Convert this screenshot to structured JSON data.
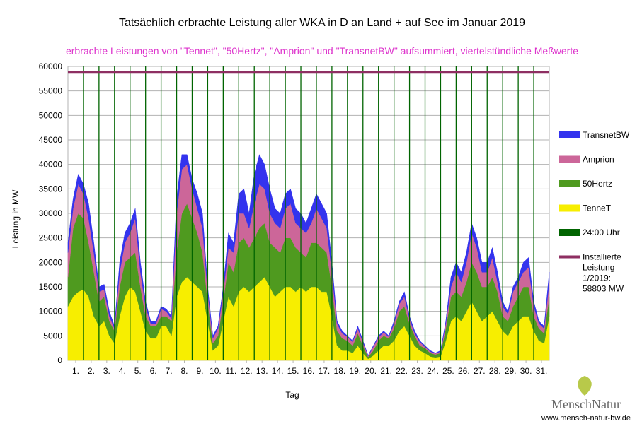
{
  "chart_data": {
    "type": "stacked_area",
    "title": "Tatsächlich erbrachte Leistung aller WKA in D an Land + auf See im Januar 2019",
    "subtitle": "erbrachte Leistungen von \"Tennet\", \"50Hertz\", \"Amprion\" und \"TransnetBW\" aufsummiert, viertelstündliche Meßwerte",
    "y_label": "Leistung in MW",
    "x_label": "Tag",
    "xlim": [
      0,
      744
    ],
    "ylim": [
      0,
      60000
    ],
    "yticks": [
      0,
      5000,
      10000,
      15000,
      20000,
      25000,
      30000,
      35000,
      40000,
      45000,
      50000,
      55000,
      60000
    ],
    "xticks": [
      {
        "value": 12,
        "label": "1."
      },
      {
        "value": 36,
        "label": "2."
      },
      {
        "value": 60,
        "label": "3."
      },
      {
        "value": 84,
        "label": "4."
      },
      {
        "value": 108,
        "label": "5."
      },
      {
        "value": 132,
        "label": "6."
      },
      {
        "value": 156,
        "label": "7."
      },
      {
        "value": 180,
        "label": "8."
      },
      {
        "value": 204,
        "label": "9."
      },
      {
        "value": 228,
        "label": "10."
      },
      {
        "value": 252,
        "label": "11."
      },
      {
        "value": 276,
        "label": "12."
      },
      {
        "value": 300,
        "label": "13."
      },
      {
        "value": 324,
        "label": "14."
      },
      {
        "value": 348,
        "label": "15."
      },
      {
        "value": 372,
        "label": "16."
      },
      {
        "value": 396,
        "label": "17."
      },
      {
        "value": 420,
        "label": "18."
      },
      {
        "value": 444,
        "label": "19."
      },
      {
        "value": 468,
        "label": "20."
      },
      {
        "value": 492,
        "label": "21."
      },
      {
        "value": 516,
        "label": "22."
      },
      {
        "value": 540,
        "label": "23."
      },
      {
        "value": 564,
        "label": "24."
      },
      {
        "value": 588,
        "label": "25."
      },
      {
        "value": 612,
        "label": "26."
      },
      {
        "value": 636,
        "label": "27."
      },
      {
        "value": 660,
        "label": "28."
      },
      {
        "value": 684,
        "label": "29."
      },
      {
        "value": 708,
        "label": "30."
      },
      {
        "value": 732,
        "label": "31."
      }
    ],
    "grid": true,
    "x": [
      0,
      8,
      16,
      24,
      32,
      40,
      48,
      56,
      64,
      72,
      80,
      88,
      96,
      104,
      112,
      120,
      128,
      136,
      144,
      152,
      160,
      168,
      176,
      184,
      192,
      200,
      208,
      216,
      224,
      232,
      240,
      248,
      256,
      264,
      272,
      280,
      288,
      296,
      304,
      312,
      320,
      328,
      336,
      344,
      352,
      360,
      368,
      376,
      384,
      392,
      400,
      408,
      416,
      424,
      432,
      440,
      448,
      456,
      464,
      472,
      480,
      488,
      496,
      504,
      512,
      520,
      528,
      536,
      544,
      552,
      560,
      568,
      576,
      584,
      592,
      600,
      608,
      616,
      624,
      632,
      640,
      648,
      656,
      664,
      672,
      680,
      688,
      696,
      704,
      712,
      720,
      728,
      736,
      744
    ],
    "series": [
      {
        "name": "TenneT",
        "color": "#f7ee00",
        "values": [
          11000,
          13000,
          14000,
          14500,
          13000,
          9000,
          7000,
          8000,
          5000,
          3500,
          9000,
          13000,
          15000,
          14000,
          10000,
          6000,
          4500,
          4500,
          7000,
          7000,
          5000,
          13000,
          16000,
          17000,
          16000,
          15000,
          14000,
          8000,
          2000,
          3000,
          8000,
          13000,
          11000,
          14000,
          15000,
          14000,
          15000,
          16000,
          17000,
          15000,
          13000,
          14000,
          15000,
          15000,
          14000,
          15000,
          14000,
          15000,
          15000,
          14000,
          14000,
          9000,
          3000,
          2000,
          2000,
          1500,
          3000,
          1500,
          300,
          1000,
          2000,
          3000,
          3000,
          4000,
          6000,
          7000,
          5000,
          3000,
          2000,
          1500,
          800,
          600,
          800,
          4000,
          8000,
          9000,
          8000,
          10000,
          12000,
          10000,
          8000,
          9000,
          10000,
          8000,
          6000,
          5000,
          7000,
          8000,
          9000,
          9000,
          6000,
          4000,
          3500,
          9000
        ]
      },
      {
        "name": "50Hertz",
        "color": "#4f9a1f",
        "values": [
          6000,
          14000,
          16000,
          14500,
          11000,
          9000,
          5000,
          5000,
          3000,
          2500,
          6000,
          7000,
          6000,
          8000,
          5000,
          3000,
          2500,
          2500,
          2000,
          2000,
          3000,
          9000,
          14000,
          15000,
          13000,
          11000,
          8000,
          4000,
          1500,
          2000,
          4000,
          7000,
          7000,
          10000,
          10000,
          9000,
          10000,
          11000,
          11000,
          9000,
          10000,
          8000,
          10000,
          10000,
          9000,
          7000,
          7000,
          9000,
          9000,
          9000,
          8000,
          6000,
          3000,
          2500,
          2000,
          1500,
          2500,
          1500,
          400,
          1000,
          2000,
          2000,
          1500,
          2500,
          4000,
          4000,
          2500,
          2000,
          1000,
          1000,
          700,
          600,
          700,
          2500,
          5000,
          5000,
          5000,
          6000,
          8000,
          8000,
          7000,
          6000,
          7000,
          6000,
          3000,
          3000,
          4000,
          5000,
          6000,
          6000,
          3000,
          2500,
          2000,
          4000
        ]
      },
      {
        "name": "Amprion",
        "color": "#cc6699",
        "values": [
          5000,
          4000,
          6000,
          5000,
          5000,
          4000,
          2000,
          1500,
          1000,
          500,
          3000,
          4000,
          5000,
          7000,
          3000,
          2000,
          500,
          500,
          1500,
          1000,
          500,
          8000,
          9000,
          8000,
          6000,
          5000,
          5000,
          2000,
          1000,
          1500,
          2000,
          3000,
          4000,
          6000,
          5000,
          4000,
          7000,
          9000,
          7000,
          6000,
          5000,
          5000,
          6000,
          7000,
          5000,
          5000,
          5000,
          4000,
          7000,
          6000,
          5000,
          3000,
          1500,
          1000,
          800,
          800,
          1000,
          700,
          200,
          800,
          700,
          700,
          300,
          1000,
          1500,
          2000,
          1000,
          500,
          700,
          300,
          300,
          200,
          300,
          1000,
          2000,
          4000,
          3000,
          4000,
          6000,
          5000,
          3000,
          3000,
          4000,
          2000,
          2000,
          1500,
          3000,
          3000,
          3000,
          4000,
          2000,
          1000,
          1000,
          3000
        ]
      },
      {
        "name": "TransnetBW",
        "color": "#3333ee",
        "values": [
          2000,
          2000,
          2000,
          2000,
          3000,
          2000,
          1000,
          1000,
          1000,
          500,
          2000,
          2000,
          2000,
          2000,
          2000,
          1000,
          500,
          500,
          500,
          500,
          500,
          3000,
          3000,
          2000,
          2000,
          3000,
          3000,
          1000,
          500,
          500,
          1000,
          3000,
          2000,
          4000,
          5000,
          3000,
          6000,
          6000,
          5000,
          5000,
          3000,
          3000,
          3000,
          3000,
          3000,
          3000,
          2000,
          3000,
          3000,
          3000,
          3000,
          2000,
          500,
          500,
          200,
          200,
          500,
          300,
          100,
          200,
          300,
          300,
          200,
          500,
          500,
          1000,
          500,
          500,
          300,
          200,
          200,
          100,
          200,
          500,
          2000,
          2000,
          2000,
          2000,
          2000,
          2000,
          2000,
          2000,
          2000,
          2000,
          1000,
          500,
          1000,
          1000,
          2000,
          2000,
          1000,
          500,
          500,
          2000
        ]
      }
    ],
    "day_lines": {
      "name": "24:00 Uhr",
      "color": "#006400",
      "x": [
        24,
        48,
        72,
        96,
        120,
        144,
        168,
        192,
        216,
        240,
        264,
        288,
        312,
        336,
        360,
        384,
        408,
        432,
        456,
        480,
        504,
        528,
        552,
        576,
        600,
        624,
        648,
        672,
        696,
        720
      ]
    },
    "capacity_line": {
      "name": [
        "Installierte",
        "Leistung",
        "1/2019:",
        "58803 MW"
      ],
      "color": "#8e2f62",
      "value": 58803
    },
    "logo": "MenschNatur",
    "website": "www.mensch-natur-bw.de"
  }
}
